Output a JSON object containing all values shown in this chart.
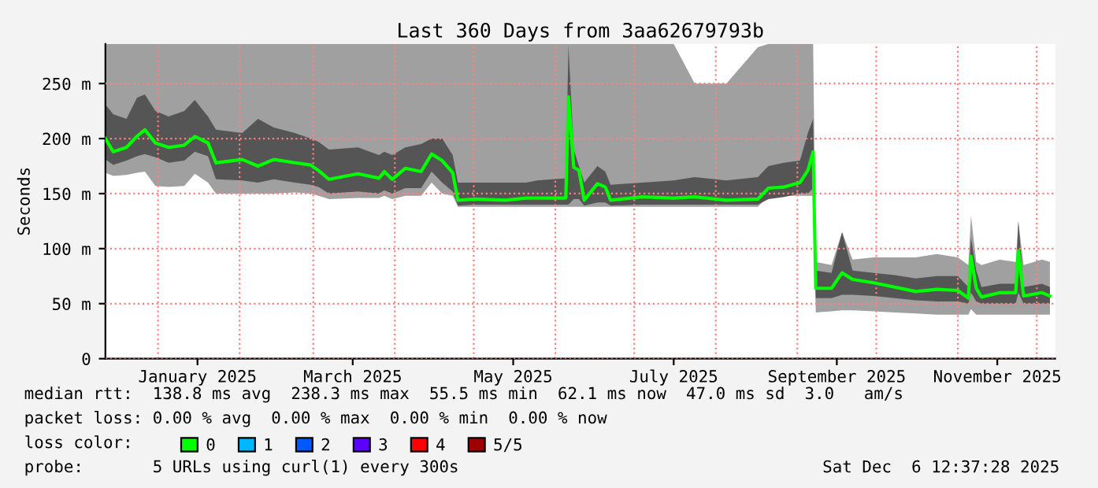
{
  "chart_data": {
    "type": "line",
    "title": "Last 360 Days from 3aa62679793b",
    "ylabel": "Seconds",
    "x": [
      "2024-12-12",
      "2024-12-15",
      "2024-12-20",
      "2024-12-24",
      "2024-12-27",
      "2024-12-31",
      "2025-01-05",
      "2025-01-11",
      "2025-01-15",
      "2025-01-20",
      "2025-01-23",
      "2025-02-02",
      "2025-02-08",
      "2025-02-14",
      "2025-02-22",
      "2025-02-28",
      "2025-03-03",
      "2025-03-07",
      "2025-03-18",
      "2025-03-26",
      "2025-03-28",
      "2025-03-31",
      "2025-04-05",
      "2025-04-11",
      "2025-04-15",
      "2025-04-19",
      "2025-04-23",
      "2025-04-25",
      "2025-05-01",
      "2025-05-13",
      "2025-05-21",
      "2025-05-25",
      "2025-06-05",
      "2025-06-06",
      "2025-06-08",
      "2025-06-10",
      "2025-06-12",
      "2025-06-17",
      "2025-06-20",
      "2025-06-22",
      "2025-07-04",
      "2025-07-16",
      "2025-07-24",
      "2025-08-05",
      "2025-08-17",
      "2025-08-21",
      "2025-08-27",
      "2025-09-02",
      "2025-09-05",
      "2025-09-07",
      "2025-09-08",
      "2025-09-14",
      "2025-09-18",
      "2025-09-22",
      "2025-09-30",
      "2025-10-08",
      "2025-10-16",
      "2025-10-24",
      "2025-11-01",
      "2025-11-05",
      "2025-11-06",
      "2025-11-08",
      "2025-11-10",
      "2025-11-17",
      "2025-11-23",
      "2025-11-24",
      "2025-11-26",
      "2025-12-03",
      "2025-12-06"
    ],
    "series": [
      {
        "color": "#a0a0a0",
        "values": [
          null,
          null,
          null,
          null,
          null,
          null,
          null,
          null,
          null,
          null,
          null,
          null,
          null,
          null,
          null,
          null,
          null,
          null,
          null,
          null,
          null,
          null,
          null,
          null,
          null,
          null,
          null,
          null,
          null,
          null,
          null,
          null,
          null,
          null,
          null,
          null,
          null,
          null,
          null,
          null,
          null,
          null,
          null,
          null,
          null,
          null,
          null,
          null,
          null,
          null,
          null,
          null,
          null,
          null,
          null,
          null,
          null,
          null,
          null,
          null,
          null,
          null,
          null,
          null,
          null,
          null,
          null,
          null,
          null
        ],
        "lower": [
          169,
          166,
          167,
          169,
          170,
          157,
          156,
          157,
          168,
          160,
          150,
          150,
          150,
          150,
          151,
          150,
          148,
          145,
          146,
          146,
          148,
          145,
          148,
          148,
          160,
          150,
          148,
          138,
          138,
          138,
          138,
          138,
          138,
          138,
          138,
          138,
          138,
          138,
          138,
          138,
          138,
          138,
          138,
          138,
          138,
          148,
          148,
          148,
          148,
          148,
          42,
          43,
          44,
          44,
          43,
          42,
          41,
          40,
          40,
          40,
          45,
          40,
          40,
          40,
          40,
          40,
          40,
          40,
          40
        ],
        "upper": [
          286,
          286,
          286,
          286,
          286,
          286,
          286,
          286,
          286,
          286,
          286,
          286,
          286,
          286,
          286,
          286,
          286,
          286,
          286,
          286,
          286,
          286,
          286,
          286,
          286,
          286,
          286,
          286,
          286,
          286,
          286,
          286,
          286,
          286,
          286,
          286,
          286,
          286,
          286,
          286,
          286,
          286,
          250,
          250,
          283,
          286,
          286,
          286,
          286,
          286,
          88,
          85,
          115,
          90,
          92,
          92,
          92,
          95,
          92,
          85,
          130,
          88,
          85,
          90,
          88,
          125,
          85,
          90,
          88
        ]
      },
      {
        "color": "#555555",
        "values": [
          null,
          null,
          null,
          null,
          null,
          null,
          null,
          null,
          null,
          null,
          null,
          null,
          null,
          null,
          null,
          null,
          null,
          null,
          null,
          null,
          null,
          null,
          null,
          null,
          null,
          null,
          null,
          null,
          null,
          null,
          null,
          null,
          null,
          null,
          null,
          null,
          null,
          null,
          null,
          null,
          null,
          null,
          null,
          null,
          null,
          null,
          null,
          null,
          null,
          null,
          null,
          null,
          null,
          null,
          null,
          null,
          null,
          null,
          null,
          null,
          null,
          null,
          null,
          null,
          null,
          null,
          null,
          null,
          null
        ],
        "lower": [
          181,
          176,
          180,
          184,
          186,
          183,
          178,
          180,
          188,
          184,
          163,
          162,
          160,
          163,
          160,
          158,
          156,
          150,
          152,
          150,
          153,
          150,
          155,
          155,
          170,
          160,
          152,
          139,
          140,
          140,
          140,
          140,
          140,
          140,
          145,
          145,
          139,
          142,
          142,
          139,
          140,
          140,
          140,
          140,
          140,
          145,
          147,
          150,
          150,
          155,
          55,
          55,
          58,
          58,
          57,
          55,
          53,
          52,
          52,
          50,
          60,
          52,
          50,
          50,
          50,
          60,
          50,
          50,
          50
        ],
        "upper": [
          231,
          222,
          218,
          237,
          240,
          225,
          220,
          225,
          235,
          220,
          208,
          205,
          218,
          210,
          205,
          200,
          197,
          190,
          192,
          185,
          188,
          185,
          192,
          195,
          200,
          200,
          185,
          160,
          160,
          160,
          160,
          162,
          164,
          285,
          190,
          175,
          160,
          175,
          170,
          158,
          160,
          162,
          165,
          162,
          165,
          175,
          178,
          180,
          205,
          218,
          80,
          78,
          115,
          80,
          78,
          76,
          73,
          75,
          75,
          65,
          110,
          80,
          65,
          68,
          68,
          125,
          65,
          68,
          65
        ]
      },
      {
        "name": "0",
        "color": "#00ff00",
        "values": [
          200,
          188,
          192,
          202,
          208,
          196,
          192,
          194,
          202,
          196,
          178,
          181,
          175,
          181,
          178,
          176,
          171,
          163,
          168,
          164,
          170,
          163,
          173,
          170,
          186,
          180,
          169,
          144,
          145,
          144,
          146,
          146,
          146,
          238,
          174,
          171,
          144,
          159,
          156,
          144,
          147,
          146,
          147,
          144,
          145,
          155,
          156,
          160,
          171,
          188,
          64,
          64,
          78,
          72,
          69,
          65,
          61,
          63,
          62,
          55,
          93,
          64,
          56,
          60,
          60,
          98,
          57,
          60,
          57
        ]
      },
      {
        "name": "1",
        "color": "#00b8ff",
        "values": [
          null,
          null,
          null,
          null,
          null,
          null,
          null,
          null,
          null,
          null,
          null,
          null,
          null,
          null,
          null,
          null,
          null,
          null,
          null,
          null,
          null,
          null,
          null,
          null,
          null,
          null,
          null,
          null,
          null,
          null,
          null,
          null,
          null,
          null,
          null,
          null,
          null,
          null,
          null,
          null,
          null,
          null,
          null,
          null,
          null,
          null,
          null,
          null,
          null,
          null,
          null,
          null,
          null,
          null,
          null,
          null,
          null,
          null,
          null,
          null,
          null,
          null,
          null,
          null,
          null,
          null,
          null,
          null,
          null
        ]
      },
      {
        "name": "2",
        "color": "#0059ff",
        "values": [
          null,
          null,
          null,
          null,
          null,
          null,
          null,
          null,
          null,
          null,
          null,
          null,
          null,
          null,
          null,
          null,
          null,
          null,
          null,
          null,
          null,
          null,
          null,
          null,
          null,
          null,
          null,
          null,
          null,
          null,
          null,
          null,
          null,
          null,
          null,
          null,
          null,
          null,
          null,
          null,
          null,
          null,
          null,
          null,
          null,
          null,
          null,
          null,
          null,
          null,
          null,
          null,
          null,
          null,
          null,
          null,
          null,
          null,
          null,
          null,
          null,
          null,
          null,
          null,
          null,
          null,
          null,
          null,
          null
        ]
      },
      {
        "name": "3",
        "color": "#5e00ff",
        "values": [
          null,
          null,
          null,
          null,
          null,
          null,
          null,
          null,
          null,
          null,
          null,
          null,
          null,
          null,
          null,
          null,
          null,
          null,
          null,
          null,
          null,
          null,
          null,
          null,
          null,
          null,
          null,
          null,
          null,
          null,
          null,
          null,
          null,
          null,
          null,
          null,
          null,
          null,
          null,
          null,
          null,
          null,
          null,
          null,
          null,
          null,
          null,
          null,
          null,
          null,
          null,
          null,
          null,
          null,
          null,
          null,
          null,
          null,
          null,
          null,
          null,
          null,
          null,
          null,
          null,
          null,
          null,
          null,
          null
        ]
      },
      {
        "name": "4",
        "color": "#ff0000",
        "values": [
          null,
          null,
          null,
          null,
          null,
          null,
          null,
          null,
          null,
          null,
          null,
          null,
          null,
          null,
          null,
          null,
          null,
          null,
          null,
          null,
          null,
          null,
          null,
          null,
          null,
          null,
          null,
          null,
          null,
          null,
          null,
          null,
          null,
          null,
          null,
          null,
          null,
          null,
          null,
          null,
          null,
          null,
          null,
          null,
          null,
          null,
          null,
          null,
          null,
          null,
          null,
          null,
          null,
          null,
          null,
          null,
          null,
          null,
          null,
          null,
          null,
          null,
          null,
          null,
          null,
          null,
          null,
          null,
          null
        ]
      },
      {
        "name": "5/5",
        "color": "#a00000",
        "values": [
          null,
          null,
          null,
          null,
          null,
          null,
          null,
          null,
          null,
          null,
          null,
          null,
          null,
          null,
          null,
          null,
          null,
          null,
          null,
          null,
          null,
          null,
          null,
          null,
          null,
          null,
          null,
          null,
          null,
          null,
          null,
          null,
          null,
          null,
          null,
          null,
          null,
          null,
          null,
          null,
          null,
          null,
          null,
          null,
          null,
          null,
          null,
          null,
          null,
          null,
          null,
          null,
          null,
          null,
          null,
          null,
          null,
          null,
          null,
          null,
          null,
          null,
          null,
          null,
          null,
          null,
          null,
          null,
          null
        ]
      }
    ],
    "xlim": [
      "2024-12-12",
      "2025-12-08"
    ],
    "xticks": [
      {
        "value": "2025-01-16",
        "label": "January 2025"
      },
      {
        "value": "2025-03-16",
        "label": "March 2025"
      },
      {
        "value": "2025-05-16",
        "label": "May 2025"
      },
      {
        "value": "2025-07-16",
        "label": "July 2025"
      },
      {
        "value": "2025-09-16",
        "label": "September 2025"
      },
      {
        "value": "2025-11-16",
        "label": "November 2025"
      }
    ],
    "ylim": [
      0,
      286
    ],
    "yticks": [
      0,
      {
        "value": 50,
        "label": "50 m"
      },
      {
        "value": 100,
        "label": "100 m"
      },
      {
        "value": 150,
        "label": "150 m"
      },
      {
        "value": 200,
        "label": "200 m"
      },
      {
        "value": 250,
        "label": "250 m"
      }
    ],
    "grid": "y",
    "ref_lines": [
      {
        "axis": "x",
        "value": "2025-01-01",
        "color": "#ff8080",
        "line_style": "dotted"
      },
      {
        "axis": "x",
        "value": "2025-02-01",
        "color": "#ff8080",
        "line_style": "dotted"
      },
      {
        "axis": "x",
        "value": "2025-03-01",
        "color": "#ff8080",
        "line_style": "dotted"
      },
      {
        "axis": "x",
        "value": "2025-04-01",
        "color": "#ff8080",
        "line_style": "dotted"
      },
      {
        "axis": "x",
        "value": "2025-05-01",
        "color": "#ff8080",
        "line_style": "dotted"
      },
      {
        "axis": "x",
        "value": "2025-06-01",
        "color": "#ff8080",
        "line_style": "dotted"
      },
      {
        "axis": "x",
        "value": "2025-07-01",
        "color": "#ff8080",
        "line_style": "dotted"
      },
      {
        "axis": "x",
        "value": "2025-08-01",
        "color": "#ff8080",
        "line_style": "dotted"
      },
      {
        "axis": "x",
        "value": "2025-09-01",
        "color": "#ff8080",
        "line_style": "dotted"
      },
      {
        "axis": "x",
        "value": "2025-10-01",
        "color": "#ff8080",
        "line_style": "dotted"
      },
      {
        "axis": "x",
        "value": "2025-11-01",
        "color": "#ff8080",
        "line_style": "dotted"
      },
      {
        "axis": "x",
        "value": "2025-12-01",
        "color": "#ff8080",
        "line_style": "dotted"
      }
    ],
    "legend": "bottom",
    "legend_title": "loss color:",
    "annotations": [
      "median rtt:  138.8 ms avg  238.3 ms max  55.5 ms min  62.1 ms now  47.0 ms sd  3.0   am/s",
      "packet loss: 0.00 % avg  0.00 % max  0.00 % min  0.00 % now",
      "probe:       5 URLs using curl(1) every 300s",
      "Sat Dec  6 12:37:28 2025"
    ]
  }
}
